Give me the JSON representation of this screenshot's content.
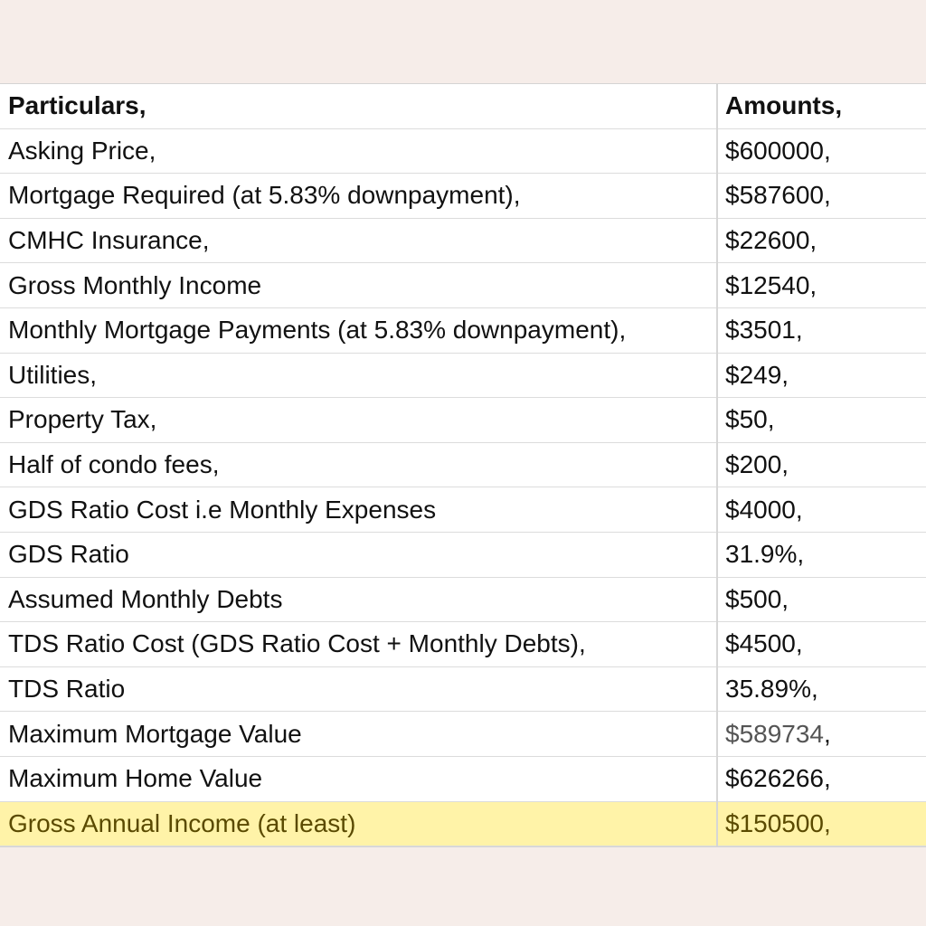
{
  "table": {
    "header": {
      "particulars": "Particulars,",
      "amounts": "Amounts,"
    },
    "rows": [
      {
        "particular": "Asking Price,",
        "amount": "$600000,"
      },
      {
        "particular": "Mortgage Required (at 5.83% downpayment),",
        "amount": "$587600,"
      },
      {
        "particular": "CMHC Insurance,",
        "amount": "$22600,"
      },
      {
        "particular": "Gross Monthly Income",
        "amount": "$12540,"
      },
      {
        "particular": "Monthly Mortgage Payments (at 5.83% downpayment),",
        "amount": "$3501,"
      },
      {
        "particular": "Utilities,",
        "amount": "$249,"
      },
      {
        "particular": "Property Tax,",
        "amount": "$50,"
      },
      {
        "particular": "Half of condo fees,",
        "amount": "$200,"
      },
      {
        "particular": "GDS Ratio Cost i.e Monthly Expenses",
        "amount": "$4000,"
      },
      {
        "particular": "GDS Ratio",
        "amount": "31.9%,"
      },
      {
        "particular": "Assumed Monthly Debts",
        "amount": "$500,"
      },
      {
        "particular": "TDS Ratio Cost (GDS Ratio Cost + Monthly Debts),",
        "amount": "$4500,"
      },
      {
        "particular": "TDS Ratio",
        "amount": "35.89%,"
      },
      {
        "particular": "Maximum Mortgage Value",
        "amount": "$589734",
        "amount_suffix": ","
      },
      {
        "particular": "Maximum Home Value",
        "amount": "$626266,"
      },
      {
        "particular": "Gross Annual Income (at least)",
        "amount": "$150500,"
      }
    ],
    "highlight_color": "#fff3a8"
  }
}
